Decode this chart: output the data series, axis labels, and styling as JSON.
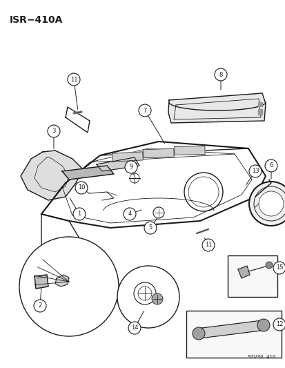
{
  "title": "ISR−410A",
  "bg_color": "#ffffff",
  "line_color": "#1a1a1a",
  "watermark": "92V30  410",
  "fig_width": 4.14,
  "fig_height": 5.33,
  "dpi": 100
}
